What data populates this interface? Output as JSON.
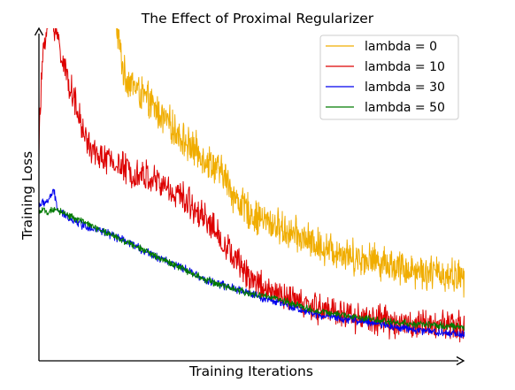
{
  "chart_data": {
    "type": "line",
    "title": "The Effect of Proximal Regularizer",
    "xlabel": "Training Iterations",
    "ylabel": "Training Loss",
    "x_ticks": "none",
    "y_ticks": "none",
    "grid": false,
    "legend_position": "top-right",
    "xlim": [
      0,
      1
    ],
    "ylim": [
      0,
      1
    ],
    "series": [
      {
        "name": "lambda = 0",
        "color": "#f0ad00",
        "noise": 0.045,
        "points": [
          [
            0.18,
            1.02
          ],
          [
            0.2,
            0.86
          ],
          [
            0.25,
            0.79
          ],
          [
            0.3,
            0.72
          ],
          [
            0.35,
            0.65
          ],
          [
            0.4,
            0.6
          ],
          [
            0.44,
            0.55
          ],
          [
            0.46,
            0.49
          ],
          [
            0.5,
            0.44
          ],
          [
            0.55,
            0.41
          ],
          [
            0.6,
            0.38
          ],
          [
            0.65,
            0.35
          ],
          [
            0.7,
            0.33
          ],
          [
            0.75,
            0.31
          ],
          [
            0.8,
            0.3
          ],
          [
            0.85,
            0.28
          ],
          [
            0.9,
            0.27
          ],
          [
            0.95,
            0.26
          ],
          [
            1.0,
            0.25
          ]
        ]
      },
      {
        "name": "lambda = 10",
        "color": "#dd0000",
        "noise": 0.04,
        "points": [
          [
            0.0,
            0.65
          ],
          [
            0.01,
            0.95
          ],
          [
            0.03,
            1.05
          ],
          [
            0.06,
            0.88
          ],
          [
            0.08,
            0.8
          ],
          [
            0.1,
            0.7
          ],
          [
            0.13,
            0.62
          ],
          [
            0.17,
            0.6
          ],
          [
            0.2,
            0.58
          ],
          [
            0.25,
            0.56
          ],
          [
            0.3,
            0.52
          ],
          [
            0.35,
            0.48
          ],
          [
            0.4,
            0.42
          ],
          [
            0.45,
            0.32
          ],
          [
            0.5,
            0.25
          ],
          [
            0.55,
            0.2
          ],
          [
            0.6,
            0.18
          ],
          [
            0.65,
            0.16
          ],
          [
            0.7,
            0.15
          ],
          [
            0.75,
            0.13
          ],
          [
            0.8,
            0.12
          ],
          [
            0.9,
            0.11
          ],
          [
            1.0,
            0.1
          ]
        ]
      },
      {
        "name": "lambda = 30",
        "color": "#0000ee",
        "noise": 0.011,
        "points": [
          [
            0.0,
            0.47
          ],
          [
            0.02,
            0.48
          ],
          [
            0.035,
            0.51
          ],
          [
            0.045,
            0.45
          ],
          [
            0.1,
            0.41
          ],
          [
            0.15,
            0.39
          ],
          [
            0.2,
            0.36
          ],
          [
            0.25,
            0.33
          ],
          [
            0.3,
            0.3
          ],
          [
            0.35,
            0.27
          ],
          [
            0.4,
            0.24
          ],
          [
            0.45,
            0.22
          ],
          [
            0.5,
            0.2
          ],
          [
            0.55,
            0.18
          ],
          [
            0.6,
            0.16
          ],
          [
            0.65,
            0.14
          ],
          [
            0.7,
            0.13
          ],
          [
            0.8,
            0.11
          ],
          [
            0.9,
            0.09
          ],
          [
            1.0,
            0.08
          ]
        ]
      },
      {
        "name": "lambda = 50",
        "color": "#007a00",
        "noise": 0.009,
        "points": [
          [
            0.0,
            0.45
          ],
          [
            0.05,
            0.45
          ],
          [
            0.1,
            0.42
          ],
          [
            0.15,
            0.39
          ],
          [
            0.2,
            0.36
          ],
          [
            0.25,
            0.33
          ],
          [
            0.3,
            0.3
          ],
          [
            0.35,
            0.27
          ],
          [
            0.4,
            0.24
          ],
          [
            0.45,
            0.22
          ],
          [
            0.5,
            0.2
          ],
          [
            0.55,
            0.19
          ],
          [
            0.6,
            0.17
          ],
          [
            0.65,
            0.15
          ],
          [
            0.7,
            0.14
          ],
          [
            0.8,
            0.12
          ],
          [
            0.9,
            0.11
          ],
          [
            1.0,
            0.1
          ]
        ]
      }
    ]
  }
}
